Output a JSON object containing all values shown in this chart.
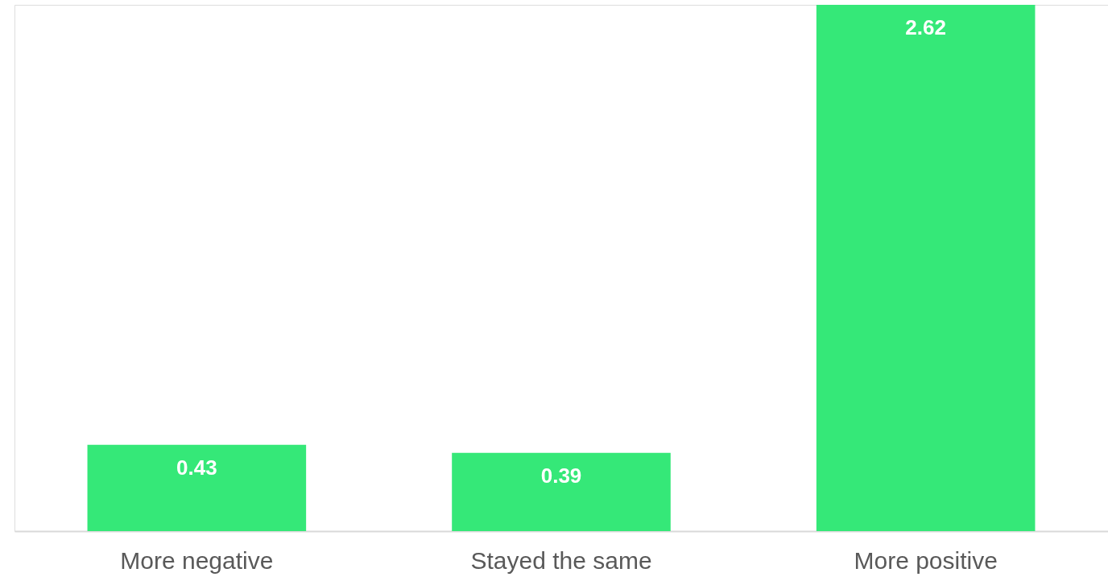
{
  "chart_data": {
    "type": "bar",
    "categories": [
      "More negative",
      "Stayed the same",
      "More positive"
    ],
    "series": [
      {
        "color": "#35e878",
        "values": [
          0.43,
          0.39,
          2.62
        ]
      }
    ],
    "data_labels": true
  }
}
